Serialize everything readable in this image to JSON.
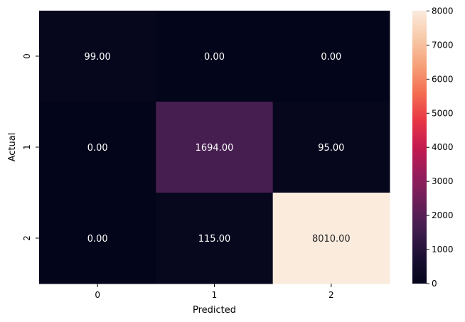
{
  "chart_data": {
    "type": "heatmap",
    "xlabel": "Predicted",
    "ylabel": "Actual",
    "x_categories": [
      "0",
      "1",
      "2"
    ],
    "y_categories": [
      "0",
      "1",
      "2"
    ],
    "values": [
      [
        99.0,
        0.0,
        0.0
      ],
      [
        0.0,
        1694.0,
        95.0
      ],
      [
        0.0,
        115.0,
        8010.0
      ]
    ],
    "cell_labels": [
      [
        "99.00",
        "0.00",
        "0.00"
      ],
      [
        "0.00",
        "1694.00",
        "95.00"
      ],
      [
        "0.00",
        "115.00",
        "8010.00"
      ]
    ],
    "colorbar": {
      "min": 0,
      "max": 8010,
      "ticks": [
        0,
        1000,
        2000,
        3000,
        4000,
        5000,
        6000,
        7000,
        8000
      ],
      "tick_labels": [
        "0",
        "1000",
        "2000",
        "3000",
        "4000",
        "5000",
        "6000",
        "7000",
        "8000"
      ]
    },
    "colormap": "rocket",
    "grid": false,
    "legend": "colorbar-right"
  }
}
